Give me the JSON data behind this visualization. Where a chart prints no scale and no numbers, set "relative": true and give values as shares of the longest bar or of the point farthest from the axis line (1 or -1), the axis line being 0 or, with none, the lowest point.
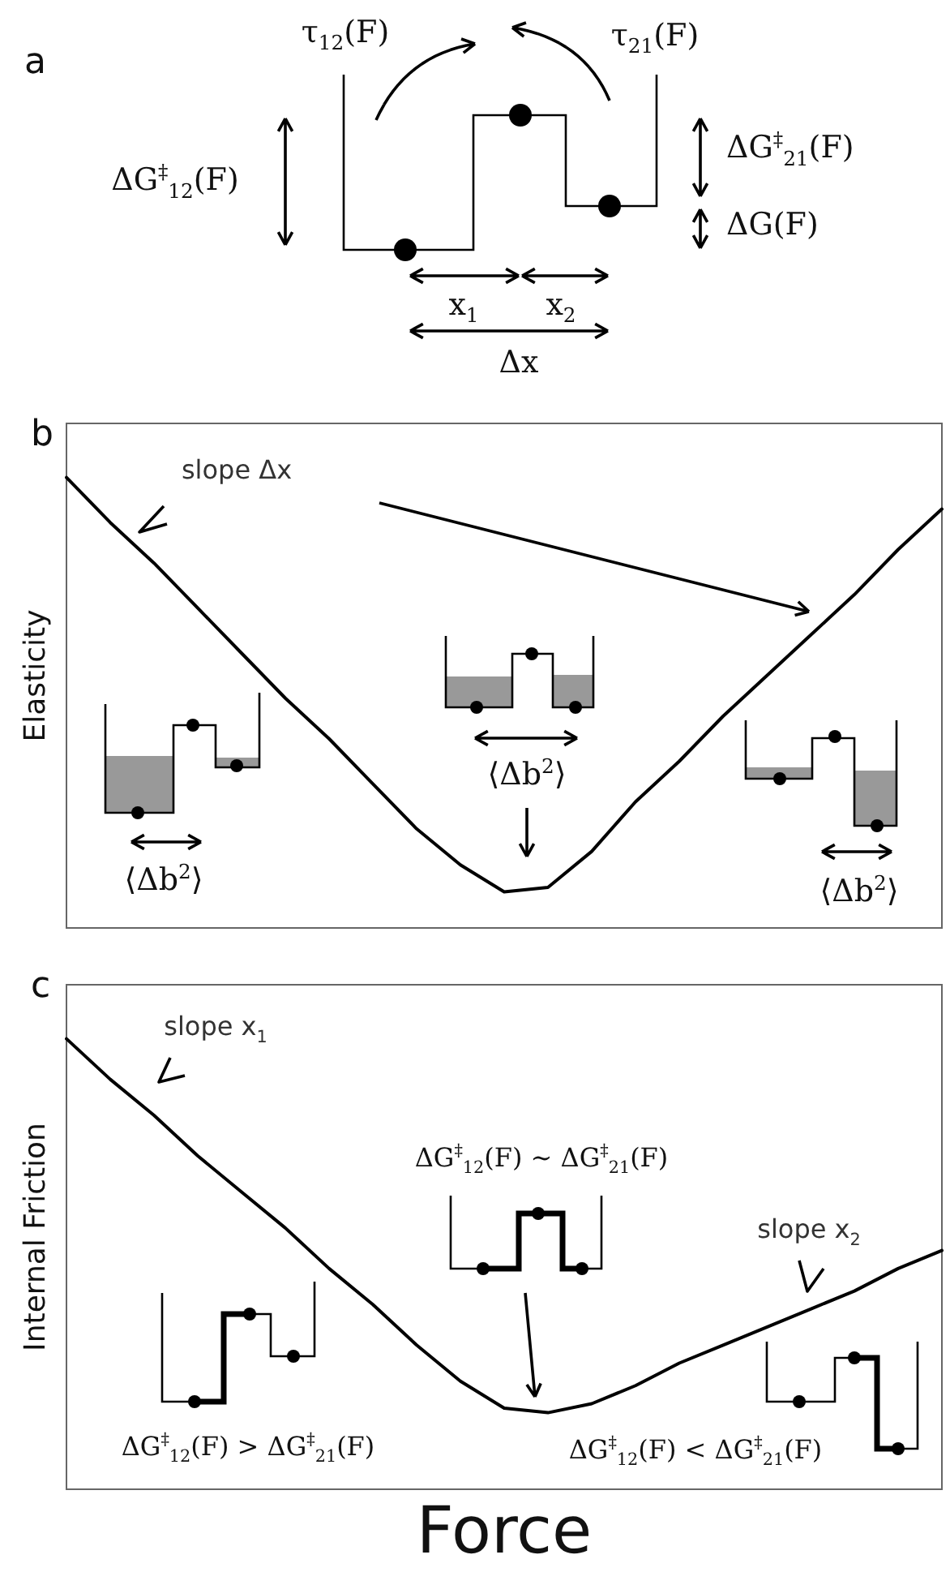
{
  "chart_data": [
    {
      "type": "other",
      "title": "a",
      "annotations": [
        "τ$_{12}$(F)",
        "τ$_{21}$(F)",
        "ΔG$^{‡}$$_{12}$(F)",
        "ΔG$^{‡}$$_{21}$(F)",
        "ΔG(F)",
        "x$_{1}$",
        "x$_{2}$",
        "Δx"
      ]
    },
    {
      "type": "line",
      "title": "b",
      "ylabel": "Elasticity",
      "categories": [
        null,
        null,
        null,
        null,
        null,
        null,
        null,
        null,
        null,
        null,
        null,
        null,
        null,
        null,
        null,
        null,
        null,
        null,
        null,
        null,
        null
      ],
      "relative": true,
      "marker": "none",
      "line_style": "solid",
      "tick_labels": false,
      "series": [
        {
          "color": "#000000",
          "values": [
            1.0,
            0.9,
            0.81,
            0.71,
            0.61,
            0.51,
            0.42,
            0.32,
            0.22,
            0.14,
            0.08,
            0.09,
            0.17,
            0.28,
            0.37,
            0.47,
            0.56,
            0.65,
            0.74,
            0.84,
            0.93
          ]
        }
      ],
      "annotations": [
        "slope Δx",
        "⟨Δb$^{2}$⟩",
        "⟨Δb$^{2}$⟩",
        "⟨Δb$^{2}$⟩"
      ]
    },
    {
      "type": "line",
      "title": "c",
      "ylabel": "Internal Friction",
      "xlabel": "Force",
      "categories": [
        null,
        null,
        null,
        null,
        null,
        null,
        null,
        null,
        null,
        null,
        null,
        null,
        null,
        null,
        null,
        null,
        null,
        null,
        null,
        null,
        null
      ],
      "relative": true,
      "marker": "none",
      "line_style": "solid",
      "tick_labels": false,
      "series": [
        {
          "color": "#000000",
          "values": [
            1.0,
            0.91,
            0.83,
            0.74,
            0.66,
            0.58,
            0.49,
            0.41,
            0.32,
            0.24,
            0.18,
            0.17,
            0.19,
            0.23,
            0.28,
            0.32,
            0.36,
            0.4,
            0.44,
            0.49,
            0.53
          ]
        }
      ],
      "annotations": [
        "slope x$_{1}$",
        "ΔG$^{‡}$$_{12}$(F) ∼ ΔG$^{‡}$$_{21}$(F)",
        "ΔG$^{‡}$$_{12}$(F) > ΔG$^{‡}$$_{21}$(F)",
        "slope x$_{2}$",
        "ΔG$^{‡}$$_{12}$(F) < ΔG$^{‡}$$_{21}$(F)"
      ]
    }
  ]
}
